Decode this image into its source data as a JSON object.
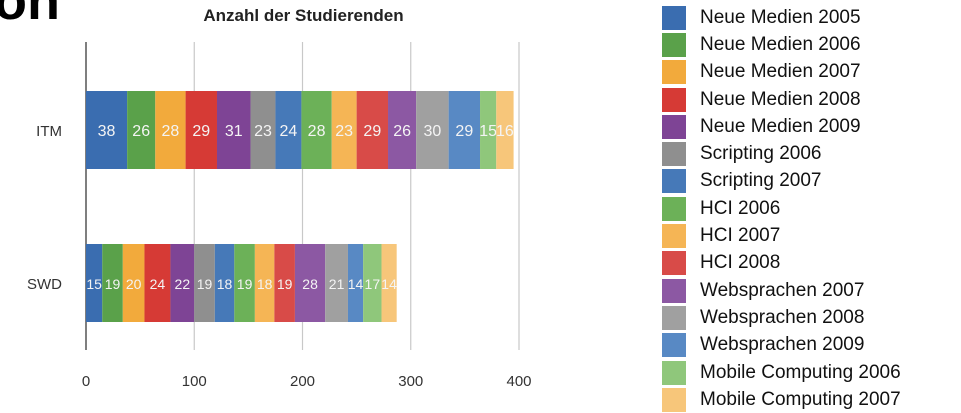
{
  "page": {
    "corner_fragment": "on"
  },
  "chart_data": {
    "type": "bar",
    "orientation": "horizontal",
    "stacked": true,
    "title": "Anzahl der Studierenden",
    "xlabel": "",
    "ylabel": "",
    "categories": [
      "ITM",
      "SWD"
    ],
    "xlim": [
      0,
      400
    ],
    "x_ticks": [
      0,
      100,
      200,
      300,
      400
    ],
    "grid": true,
    "legend_position": "right",
    "series": [
      {
        "name": "Neue Medien 2005",
        "color": "#3a6db0",
        "values": [
          38,
          15
        ]
      },
      {
        "name": "Neue Medien 2006",
        "color": "#5aa14a",
        "values": [
          26,
          19
        ]
      },
      {
        "name": "Neue Medien 2007",
        "color": "#f2aa3c",
        "values": [
          28,
          20
        ]
      },
      {
        "name": "Neue Medien 2008",
        "color": "#d63a35",
        "values": [
          29,
          24
        ]
      },
      {
        "name": "Neue Medien 2009",
        "color": "#7e4495",
        "values": [
          31,
          22
        ]
      },
      {
        "name": "Scripting 2006",
        "color": "#8f8f8f",
        "values": [
          23,
          19
        ]
      },
      {
        "name": "Scripting 2007",
        "color": "#4679b8",
        "values": [
          24,
          18
        ]
      },
      {
        "name": "HCI 2006",
        "color": "#6cb158",
        "values": [
          28,
          19
        ]
      },
      {
        "name": "HCI 2007",
        "color": "#f5b555",
        "values": [
          23,
          18
        ]
      },
      {
        "name": "HCI 2008",
        "color": "#d84b48",
        "values": [
          29,
          19
        ]
      },
      {
        "name": "Websprachen 2007",
        "color": "#8c58a3",
        "values": [
          26,
          28
        ]
      },
      {
        "name": "Websprachen 2008",
        "color": "#a0a0a0",
        "values": [
          30,
          21
        ]
      },
      {
        "name": "Websprachen 2009",
        "color": "#5889c4",
        "values": [
          29,
          14
        ]
      },
      {
        "name": "Mobile Computing 2006",
        "color": "#8fc77b",
        "values": [
          15,
          17
        ]
      },
      {
        "name": "Mobile Computing 2007",
        "color": "#f7c67a",
        "values": [
          16,
          14
        ]
      }
    ]
  }
}
